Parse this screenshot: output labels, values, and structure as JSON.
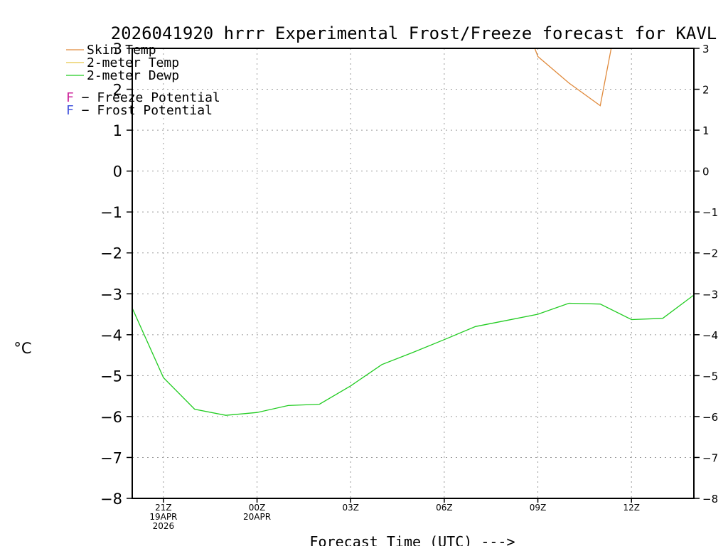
{
  "chart_data": {
    "type": "line",
    "title": "2026041920 hrrr Experimental Frost/Freeze forecast for KAVL",
    "xlabel": "Forecast Time (UTC) --->",
    "ylabel_unit": "°C",
    "ylim": [
      -8,
      3
    ],
    "xlim": [
      -1,
      17
    ],
    "yticks": [
      3,
      2,
      1,
      0,
      -1,
      -2,
      -3,
      -4,
      -5,
      -6,
      -7,
      -8
    ],
    "ytick_labels": [
      "3",
      "2",
      "1",
      "0",
      "−1",
      "−2",
      "−3",
      "−4",
      "−5",
      "−6",
      "−7",
      "−8"
    ],
    "xticks": [
      {
        "x": 0,
        "lines": [
          "21Z",
          "19APR",
          "2026"
        ]
      },
      {
        "x": 3,
        "lines": [
          "00Z",
          "20APR"
        ]
      },
      {
        "x": 6,
        "lines": [
          "03Z"
        ]
      },
      {
        "x": 9,
        "lines": [
          "06Z"
        ]
      },
      {
        "x": 12,
        "lines": [
          "09Z"
        ]
      },
      {
        "x": 15,
        "lines": [
          "12Z"
        ]
      }
    ],
    "legend": [
      {
        "label": "Skin Temp",
        "color": "#e08a3c"
      },
      {
        "label": "2-meter Temp",
        "color": "#e6c84a"
      },
      {
        "label": "2-meter Dewp",
        "color": "#22cc22"
      }
    ],
    "potential_legend": [
      {
        "letter": "F",
        "text": " − Freeze Potential",
        "color": "#cc2299"
      },
      {
        "letter": "F",
        "text": " − Frost Potential",
        "color": "#4455dd"
      }
    ],
    "series": [
      {
        "name": "2-meter Dewp",
        "color": "#22cc22",
        "x": [
          -1,
          0,
          1,
          2,
          3,
          4,
          5,
          6,
          7,
          8,
          9,
          10,
          11,
          12,
          13,
          14,
          15,
          16,
          17
        ],
        "y": [
          -3.35,
          -5.05,
          -5.82,
          -5.97,
          -5.9,
          -5.73,
          -5.7,
          -5.25,
          -4.73,
          -4.43,
          -4.12,
          -3.8,
          -3.65,
          -3.5,
          -3.23,
          -3.25,
          -3.63,
          -3.6,
          -3.03
        ]
      },
      {
        "name": "Skin Temp",
        "color": "#e08a3c",
        "x": [
          11.9,
          12,
          13,
          14,
          14.35
        ],
        "y": [
          3.0,
          2.8,
          2.15,
          1.6,
          3.0
        ]
      }
    ]
  }
}
